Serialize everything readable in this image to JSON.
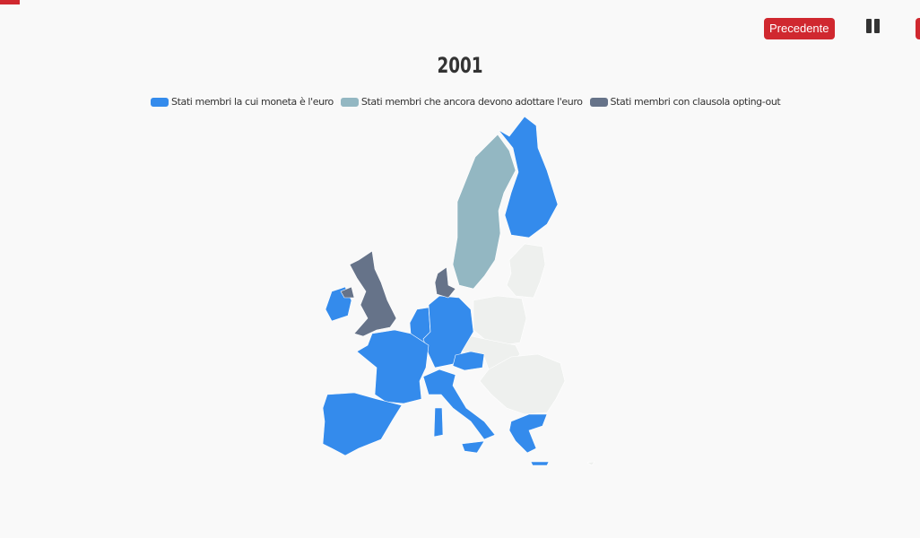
{
  "controls": {
    "previous_label": "Precedente",
    "pause_icon": "pause-icon"
  },
  "title": "2001",
  "legend": [
    {
      "label": "Stati membri la cui moneta è l'euro",
      "color": "#348bec"
    },
    {
      "label": "Stati membri che ancora devono adottare l'euro",
      "color": "#93b7c2"
    },
    {
      "label": "Stati membri con clausola opting-out",
      "color": "#667389"
    }
  ],
  "colors": {
    "other": "#eef0ee",
    "accent": "#d0282f"
  },
  "map": {
    "euro": [
      "Finland",
      "Ireland",
      "France",
      "Spain",
      "Portugal",
      "Italy",
      "Germany",
      "Belgium",
      "Netherlands",
      "Luxembourg",
      "Austria",
      "Greece"
    ],
    "to_adopt": [
      "Sweden"
    ],
    "opt_out": [
      "United Kingdom",
      "Denmark"
    ]
  }
}
